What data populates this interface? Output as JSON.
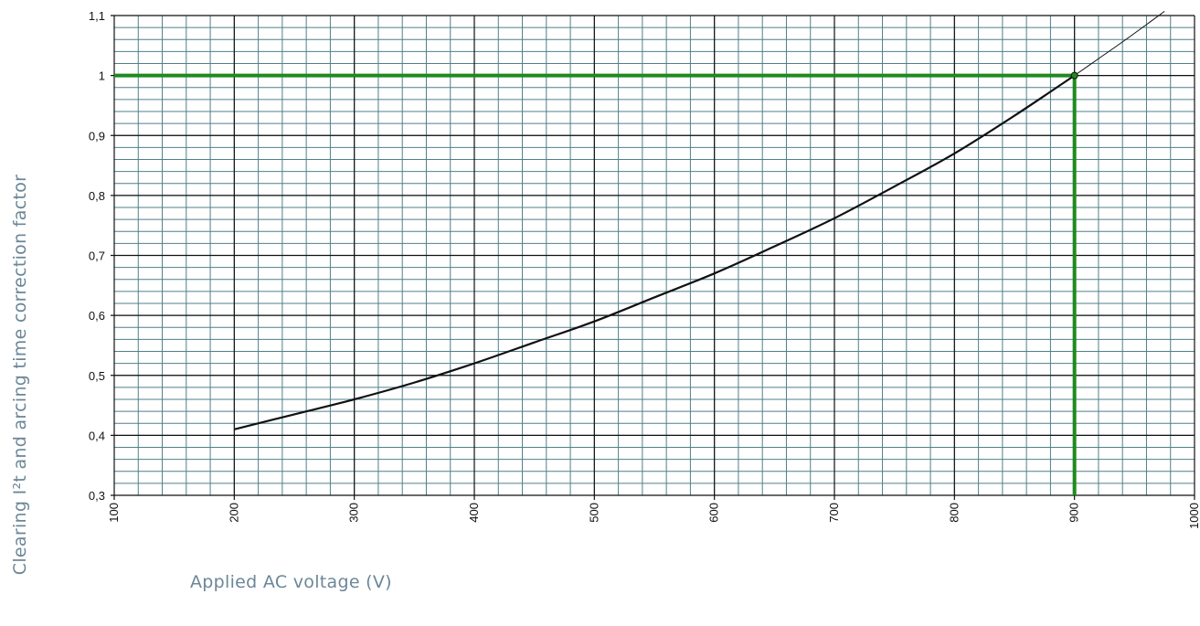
{
  "chart_data": {
    "type": "line",
    "xlabel": "Applied AC voltage (V)",
    "ylabel": "Clearing I²t and arcing time correction factor",
    "xlim": [
      100,
      1000
    ],
    "ylim": [
      0.3,
      1.1
    ],
    "x_ticks": [
      {
        "value": 100,
        "label": "100"
      },
      {
        "value": 200,
        "label": "200"
      },
      {
        "value": 300,
        "label": "300"
      },
      {
        "value": 400,
        "label": "400"
      },
      {
        "value": 500,
        "label": "500"
      },
      {
        "value": 600,
        "label": "600"
      },
      {
        "value": 700,
        "label": "700"
      },
      {
        "value": 800,
        "label": "800"
      },
      {
        "value": 900,
        "label": "900"
      },
      {
        "value": 1000,
        "label": "1000"
      }
    ],
    "y_ticks": [
      {
        "value": 0.3,
        "label": "0,3"
      },
      {
        "value": 0.4,
        "label": "0,4"
      },
      {
        "value": 0.5,
        "label": "0,5"
      },
      {
        "value": 0.6,
        "label": "0,6"
      },
      {
        "value": 0.7,
        "label": "0,7"
      },
      {
        "value": 0.8,
        "label": "0,8"
      },
      {
        "value": 0.9,
        "label": "0,9"
      },
      {
        "value": 1.0,
        "label": "1"
      },
      {
        "value": 1.1,
        "label": "1,1"
      }
    ],
    "minor_x_step": 20,
    "minor_y_step": 0.02,
    "grid": true,
    "series": [
      {
        "color": "#111111",
        "points": [
          [
            200,
            0.41
          ],
          [
            250,
            0.435
          ],
          [
            300,
            0.46
          ],
          [
            350,
            0.488
          ],
          [
            400,
            0.52
          ],
          [
            450,
            0.555
          ],
          [
            500,
            0.59
          ],
          [
            550,
            0.63
          ],
          [
            600,
            0.67
          ],
          [
            650,
            0.715
          ],
          [
            700,
            0.762
          ],
          [
            750,
            0.815
          ],
          [
            800,
            0.87
          ],
          [
            850,
            0.933
          ],
          [
            900,
            1.0
          ]
        ]
      },
      {
        "color": "#111111",
        "style": "thin",
        "points": [
          [
            900,
            1.0
          ],
          [
            920,
            1.028
          ],
          [
            940,
            1.056
          ],
          [
            960,
            1.085
          ],
          [
            975,
            1.107
          ]
        ]
      }
    ],
    "reference": {
      "x": 900,
      "y": 1.0,
      "color": "#1e8a1e"
    },
    "colors": {
      "major_grid": "#111111",
      "minor_grid": "#4f7f8a",
      "label_text": "#6b8797"
    }
  }
}
